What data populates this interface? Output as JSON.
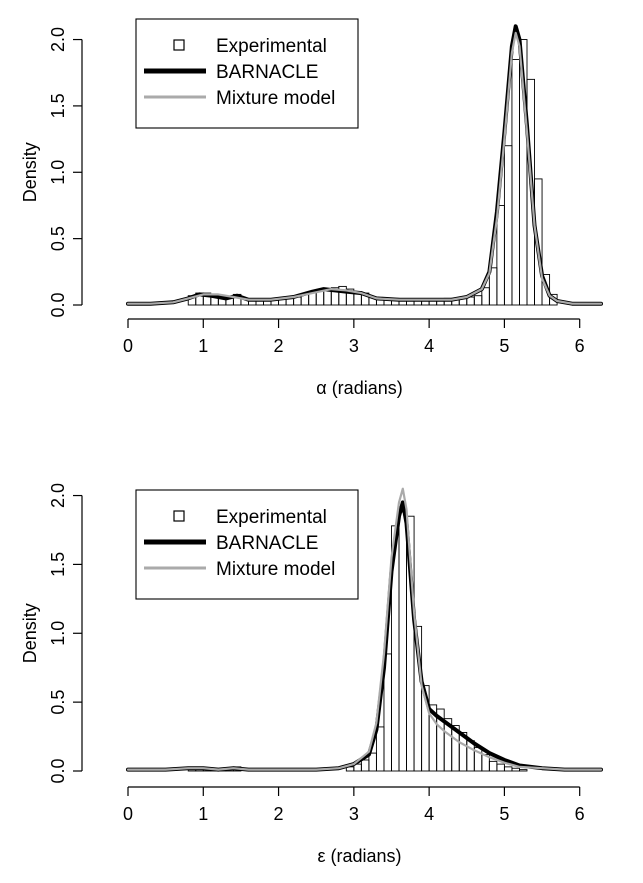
{
  "chart_data": [
    {
      "type": "bar",
      "xlabel": "α (radians)",
      "ylabel": "Density",
      "xlim": [
        0,
        6.283
      ],
      "ylim": [
        0,
        2.2
      ],
      "xticks": [
        "0",
        "1",
        "2",
        "3",
        "4",
        "5",
        "6"
      ],
      "yticks": [
        "0.0",
        "0.5",
        "1.0",
        "1.5",
        "2.0"
      ],
      "grid": false,
      "legend_position": "top-left",
      "legend": [
        {
          "label": "Experimental",
          "style": "square-marker",
          "color": "#000000"
        },
        {
          "label": "BARNACLE",
          "style": "thick-line",
          "color": "#000000"
        },
        {
          "label": "Mixture model",
          "style": "line",
          "color": "#aaaaaa"
        }
      ],
      "histogram": {
        "name": "Experimental",
        "bin_width": 0.1,
        "bins": [
          [
            0.8,
            0.07
          ],
          [
            0.9,
            0.09
          ],
          [
            1.0,
            0.09
          ],
          [
            1.1,
            0.07
          ],
          [
            1.2,
            0.06
          ],
          [
            1.3,
            0.06
          ],
          [
            1.4,
            0.08
          ],
          [
            1.5,
            0.05
          ],
          [
            1.6,
            0.04
          ],
          [
            1.7,
            0.03
          ],
          [
            1.8,
            0.03
          ],
          [
            1.9,
            0.04
          ],
          [
            2.0,
            0.05
          ],
          [
            2.1,
            0.05
          ],
          [
            2.2,
            0.06
          ],
          [
            2.3,
            0.08
          ],
          [
            2.4,
            0.09
          ],
          [
            2.5,
            0.11
          ],
          [
            2.6,
            0.12
          ],
          [
            2.7,
            0.13
          ],
          [
            2.8,
            0.14
          ],
          [
            2.9,
            0.12
          ],
          [
            3.0,
            0.1
          ],
          [
            3.1,
            0.09
          ],
          [
            3.2,
            0.06
          ],
          [
            3.3,
            0.05
          ],
          [
            3.4,
            0.05
          ],
          [
            3.5,
            0.05
          ],
          [
            3.6,
            0.04
          ],
          [
            3.7,
            0.04
          ],
          [
            3.8,
            0.04
          ],
          [
            3.9,
            0.04
          ],
          [
            4.0,
            0.04
          ],
          [
            4.1,
            0.04
          ],
          [
            4.2,
            0.05
          ],
          [
            4.3,
            0.05
          ],
          [
            4.4,
            0.05
          ],
          [
            4.5,
            0.06
          ],
          [
            4.6,
            0.07
          ],
          [
            4.7,
            0.13
          ],
          [
            4.8,
            0.28
          ],
          [
            4.9,
            0.75
          ],
          [
            5.0,
            1.2
          ],
          [
            5.1,
            1.85
          ],
          [
            5.2,
            2.0
          ],
          [
            5.3,
            1.7
          ],
          [
            5.4,
            0.95
          ],
          [
            5.5,
            0.23
          ],
          [
            5.6,
            0.08
          ]
        ]
      },
      "series": [
        {
          "name": "BARNACLE",
          "color": "#000000",
          "x": [
            0,
            0.3,
            0.6,
            0.8,
            0.95,
            1.1,
            1.3,
            1.45,
            1.6,
            1.9,
            2.2,
            2.45,
            2.6,
            2.75,
            2.9,
            3.1,
            3.3,
            3.6,
            4.0,
            4.3,
            4.5,
            4.7,
            4.8,
            4.9,
            5.0,
            5.1,
            5.15,
            5.2,
            5.3,
            5.4,
            5.5,
            5.6,
            5.7,
            5.9,
            6.283
          ],
          "y": [
            0.01,
            0.01,
            0.02,
            0.05,
            0.08,
            0.07,
            0.05,
            0.07,
            0.04,
            0.04,
            0.06,
            0.1,
            0.12,
            0.11,
            0.1,
            0.09,
            0.05,
            0.04,
            0.04,
            0.04,
            0.06,
            0.12,
            0.25,
            0.7,
            1.3,
            1.95,
            2.1,
            2.0,
            1.35,
            0.6,
            0.22,
            0.07,
            0.03,
            0.01,
            0.01
          ]
        },
        {
          "name": "Mixture model",
          "color": "#aaaaaa",
          "x": [
            0,
            0.3,
            0.6,
            0.8,
            1.0,
            1.2,
            1.4,
            1.6,
            1.9,
            2.2,
            2.45,
            2.7,
            2.9,
            3.1,
            3.3,
            3.6,
            4.0,
            4.3,
            4.5,
            4.7,
            4.8,
            4.9,
            5.0,
            5.1,
            5.15,
            5.2,
            5.3,
            5.4,
            5.5,
            5.6,
            5.7,
            5.9,
            6.283
          ],
          "y": [
            0.01,
            0.01,
            0.02,
            0.05,
            0.08,
            0.08,
            0.06,
            0.04,
            0.04,
            0.06,
            0.09,
            0.12,
            0.11,
            0.09,
            0.05,
            0.04,
            0.04,
            0.04,
            0.06,
            0.12,
            0.24,
            0.65,
            1.25,
            1.9,
            2.05,
            1.95,
            1.3,
            0.6,
            0.2,
            0.07,
            0.03,
            0.01,
            0.01
          ]
        }
      ]
    },
    {
      "type": "bar",
      "xlabel": "ε (radians)",
      "ylabel": "Density",
      "xlim": [
        0,
        6.283
      ],
      "ylim": [
        0,
        2.2
      ],
      "xticks": [
        "0",
        "1",
        "2",
        "3",
        "4",
        "5",
        "6"
      ],
      "yticks": [
        "0.0",
        "0.5",
        "1.0",
        "1.5",
        "2.0"
      ],
      "grid": false,
      "legend_position": "top-left",
      "legend": [
        {
          "label": "Experimental",
          "style": "square-marker",
          "color": "#000000"
        },
        {
          "label": "BARNACLE",
          "style": "thick-line",
          "color": "#000000"
        },
        {
          "label": "Mixture model",
          "style": "line",
          "color": "#aaaaaa"
        }
      ],
      "histogram": {
        "name": "Experimental",
        "bin_width": 0.1,
        "bins": [
          [
            0.8,
            0.02
          ],
          [
            0.9,
            0.02
          ],
          [
            1.0,
            0.02
          ],
          [
            1.1,
            0.01
          ],
          [
            1.2,
            0.01
          ],
          [
            1.3,
            0.02
          ],
          [
            1.4,
            0.03
          ],
          [
            2.9,
            0.03
          ],
          [
            3.0,
            0.05
          ],
          [
            3.1,
            0.08
          ],
          [
            3.2,
            0.13
          ],
          [
            3.3,
            0.32
          ],
          [
            3.4,
            0.85
          ],
          [
            3.5,
            1.78
          ],
          [
            3.6,
            1.88
          ],
          [
            3.7,
            1.85
          ],
          [
            3.8,
            1.05
          ],
          [
            3.9,
            0.62
          ],
          [
            4.0,
            0.48
          ],
          [
            4.1,
            0.45
          ],
          [
            4.2,
            0.38
          ],
          [
            4.3,
            0.33
          ],
          [
            4.4,
            0.28
          ],
          [
            4.5,
            0.22
          ],
          [
            4.6,
            0.17
          ],
          [
            4.7,
            0.12
          ],
          [
            4.8,
            0.07
          ],
          [
            4.9,
            0.05
          ],
          [
            5.0,
            0.03
          ],
          [
            5.1,
            0.02
          ],
          [
            5.2,
            0.01
          ]
        ]
      },
      "series": [
        {
          "name": "BARNACLE",
          "color": "#000000",
          "x": [
            0,
            0.5,
            0.8,
            1.0,
            1.2,
            1.4,
            1.6,
            2.0,
            2.5,
            2.8,
            3.0,
            3.2,
            3.3,
            3.4,
            3.5,
            3.6,
            3.65,
            3.7,
            3.8,
            3.9,
            4.0,
            4.1,
            4.2,
            4.4,
            4.6,
            4.8,
            5.0,
            5.2,
            5.5,
            5.8,
            6.283
          ],
          "y": [
            0.01,
            0.01,
            0.02,
            0.02,
            0.01,
            0.02,
            0.01,
            0.01,
            0.01,
            0.02,
            0.05,
            0.12,
            0.3,
            0.75,
            1.45,
            1.85,
            1.95,
            1.8,
            1.1,
            0.65,
            0.45,
            0.4,
            0.36,
            0.28,
            0.2,
            0.13,
            0.08,
            0.04,
            0.02,
            0.01,
            0.01
          ]
        },
        {
          "name": "Mixture model",
          "color": "#aaaaaa",
          "x": [
            0,
            0.5,
            0.8,
            1.0,
            1.2,
            1.4,
            1.6,
            2.0,
            2.5,
            2.8,
            3.0,
            3.2,
            3.3,
            3.4,
            3.5,
            3.6,
            3.65,
            3.7,
            3.8,
            3.9,
            4.0,
            4.1,
            4.2,
            4.4,
            4.6,
            4.8,
            5.0,
            5.2,
            5.5,
            5.8,
            6.283
          ],
          "y": [
            0.01,
            0.01,
            0.02,
            0.02,
            0.01,
            0.02,
            0.01,
            0.01,
            0.01,
            0.02,
            0.05,
            0.14,
            0.35,
            0.85,
            1.55,
            1.95,
            2.05,
            1.9,
            1.15,
            0.62,
            0.42,
            0.34,
            0.29,
            0.21,
            0.15,
            0.1,
            0.06,
            0.03,
            0.02,
            0.01,
            0.01
          ]
        }
      ]
    }
  ]
}
